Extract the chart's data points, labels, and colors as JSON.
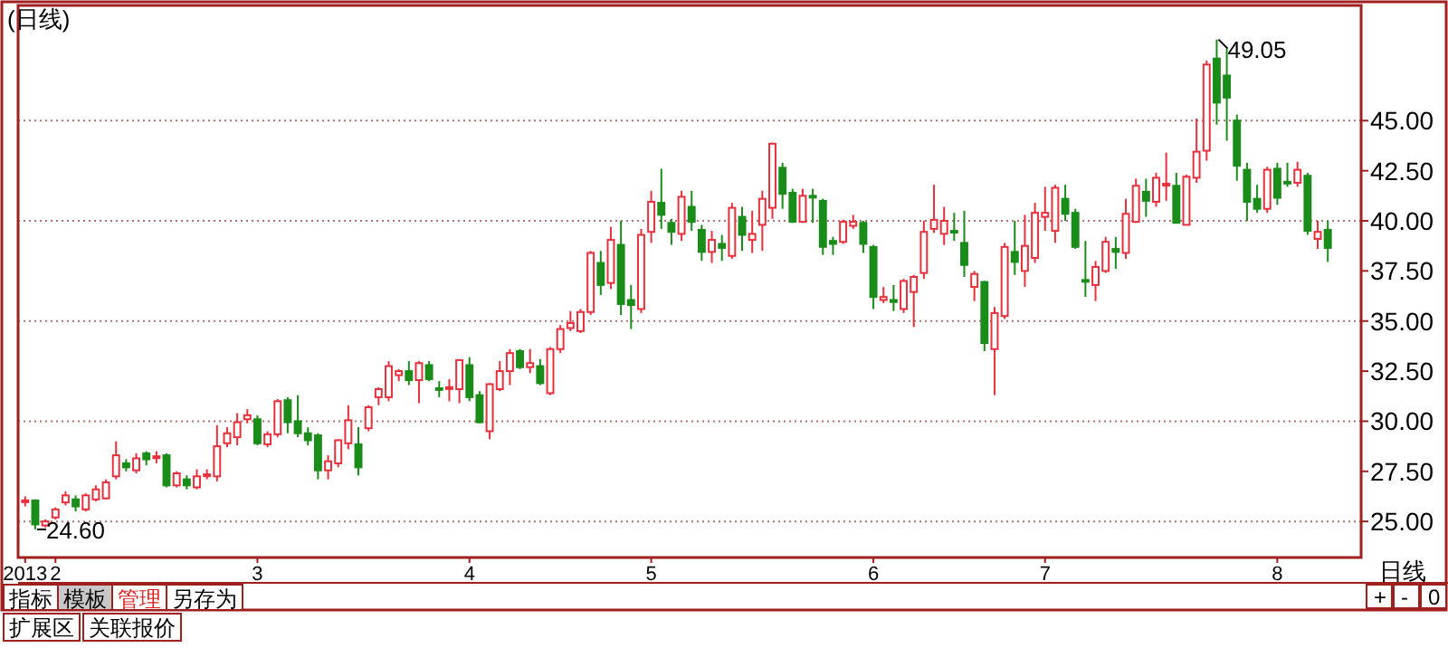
{
  "chart_data": {
    "type": "candlestick",
    "title": "(日线)",
    "categories": [
      "2013",
      null,
      null,
      "2",
      null,
      null,
      null,
      null,
      null,
      null,
      null,
      null,
      null,
      null,
      null,
      null,
      null,
      null,
      null,
      null,
      null,
      null,
      null,
      "3",
      null,
      null,
      null,
      null,
      null,
      null,
      null,
      null,
      null,
      null,
      null,
      null,
      null,
      null,
      null,
      null,
      null,
      null,
      null,
      null,
      "4",
      null,
      null,
      null,
      null,
      null,
      null,
      null,
      null,
      null,
      null,
      null,
      null,
      null,
      null,
      null,
      null,
      null,
      "5",
      null,
      null,
      null,
      null,
      null,
      null,
      null,
      null,
      null,
      null,
      null,
      null,
      null,
      null,
      null,
      null,
      null,
      null,
      null,
      null,
      null,
      "6",
      null,
      null,
      null,
      null,
      null,
      null,
      null,
      null,
      null,
      null,
      null,
      null,
      null,
      null,
      null,
      null,
      "7",
      null,
      null,
      null,
      null,
      null,
      null,
      null,
      null,
      null,
      null,
      null,
      null,
      null,
      null,
      null,
      null,
      null,
      null,
      null,
      null,
      null,
      null,
      "8",
      null,
      null,
      null,
      null,
      null
    ],
    "ohlc": [
      [
        26.0,
        26.25,
        25.75,
        26.05
      ],
      [
        26.05,
        26.1,
        24.6,
        24.85
      ],
      [
        24.8,
        25.1,
        24.7,
        25.0
      ],
      [
        25.2,
        25.7,
        25.1,
        25.6
      ],
      [
        25.95,
        26.5,
        25.8,
        26.3
      ],
      [
        26.1,
        26.3,
        25.5,
        25.75
      ],
      [
        25.6,
        26.4,
        25.5,
        26.3
      ],
      [
        26.1,
        26.8,
        26.0,
        26.6
      ],
      [
        26.15,
        27.1,
        26.1,
        26.95
      ],
      [
        27.25,
        29.0,
        27.1,
        28.3
      ],
      [
        27.9,
        28.1,
        27.5,
        27.7
      ],
      [
        27.55,
        28.4,
        27.4,
        28.15
      ],
      [
        28.4,
        28.5,
        27.8,
        28.1
      ],
      [
        28.2,
        28.5,
        27.9,
        28.25
      ],
      [
        28.3,
        28.4,
        26.7,
        26.8
      ],
      [
        26.8,
        27.5,
        26.7,
        27.4
      ],
      [
        27.1,
        27.3,
        26.6,
        26.8
      ],
      [
        26.7,
        27.6,
        26.6,
        27.25
      ],
      [
        27.3,
        27.6,
        27.1,
        27.35
      ],
      [
        27.25,
        29.8,
        27.0,
        28.75
      ],
      [
        28.9,
        29.7,
        28.7,
        29.4
      ],
      [
        29.2,
        30.4,
        28.8,
        29.95
      ],
      [
        30.1,
        30.6,
        29.9,
        30.3
      ],
      [
        30.1,
        30.3,
        28.8,
        28.9
      ],
      [
        28.85,
        29.5,
        28.7,
        29.35
      ],
      [
        29.35,
        31.1,
        29.2,
        31.0
      ],
      [
        31.05,
        31.2,
        29.4,
        29.95
      ],
      [
        30.0,
        31.3,
        29.2,
        29.4
      ],
      [
        29.4,
        29.7,
        28.8,
        29.05
      ],
      [
        29.3,
        29.4,
        27.1,
        27.55
      ],
      [
        27.55,
        28.3,
        27.1,
        28.0
      ],
      [
        27.9,
        29.1,
        27.7,
        29.05
      ],
      [
        28.9,
        30.8,
        28.6,
        30.05
      ],
      [
        28.85,
        29.7,
        27.3,
        27.7
      ],
      [
        29.65,
        30.8,
        29.5,
        30.7
      ],
      [
        31.2,
        31.7,
        30.8,
        31.6
      ],
      [
        31.2,
        33.0,
        31.0,
        32.75
      ],
      [
        32.3,
        32.6,
        32.0,
        32.5
      ],
      [
        32.5,
        33.0,
        31.8,
        32.05
      ],
      [
        32.05,
        33.0,
        30.9,
        32.9
      ],
      [
        32.8,
        33.0,
        32.0,
        32.1
      ],
      [
        31.65,
        32.0,
        31.2,
        31.6
      ],
      [
        31.65,
        32.1,
        31.0,
        31.7
      ],
      [
        31.6,
        33.1,
        30.9,
        33.05
      ],
      [
        32.8,
        33.2,
        31.0,
        31.2
      ],
      [
        31.3,
        31.5,
        29.9,
        29.95
      ],
      [
        29.5,
        31.9,
        29.1,
        31.85
      ],
      [
        31.6,
        33.0,
        31.5,
        32.5
      ],
      [
        32.5,
        33.6,
        31.8,
        33.4
      ],
      [
        33.5,
        33.6,
        32.6,
        32.7
      ],
      [
        32.7,
        33.6,
        32.4,
        32.9
      ],
      [
        32.75,
        33.1,
        31.8,
        31.9
      ],
      [
        31.4,
        33.7,
        31.3,
        33.6
      ],
      [
        33.6,
        34.8,
        33.4,
        34.6
      ],
      [
        34.65,
        35.5,
        34.5,
        34.9
      ],
      [
        34.5,
        35.6,
        34.4,
        35.45
      ],
      [
        35.45,
        38.5,
        35.3,
        38.4
      ],
      [
        37.9,
        38.5,
        36.3,
        36.8
      ],
      [
        36.9,
        39.7,
        36.6,
        39.05
      ],
      [
        38.8,
        40.0,
        35.3,
        35.85
      ],
      [
        36.05,
        36.8,
        34.6,
        35.8
      ],
      [
        35.6,
        39.6,
        35.4,
        39.3
      ],
      [
        39.45,
        41.5,
        38.9,
        40.95
      ],
      [
        40.9,
        42.6,
        39.6,
        40.3
      ],
      [
        39.9,
        40.1,
        38.8,
        39.45
      ],
      [
        39.35,
        41.5,
        39.0,
        41.2
      ],
      [
        40.7,
        41.5,
        39.5,
        39.95
      ],
      [
        39.55,
        39.8,
        38.0,
        38.45
      ],
      [
        38.45,
        39.5,
        37.9,
        39.05
      ],
      [
        38.85,
        39.3,
        38.0,
        38.65
      ],
      [
        38.25,
        40.9,
        38.1,
        40.65
      ],
      [
        40.2,
        40.7,
        38.5,
        39.3
      ],
      [
        39.05,
        40.5,
        38.4,
        39.35
      ],
      [
        39.8,
        41.5,
        38.5,
        41.1
      ],
      [
        40.65,
        43.9,
        40.1,
        43.85
      ],
      [
        42.65,
        42.9,
        40.6,
        41.35
      ],
      [
        41.4,
        41.6,
        39.9,
        39.95
      ],
      [
        39.95,
        41.6,
        39.9,
        41.25
      ],
      [
        41.25,
        41.6,
        39.9,
        41.2
      ],
      [
        41.0,
        41.1,
        38.3,
        38.7
      ],
      [
        39.0,
        39.2,
        38.3,
        38.85
      ],
      [
        38.95,
        40.05,
        38.85,
        39.95
      ],
      [
        39.75,
        40.3,
        39.6,
        39.95
      ],
      [
        39.9,
        40.0,
        38.4,
        38.85
      ],
      [
        38.7,
        38.8,
        35.6,
        36.2
      ],
      [
        36.05,
        36.7,
        35.9,
        36.2
      ],
      [
        36.05,
        36.8,
        35.5,
        35.95
      ],
      [
        35.6,
        37.1,
        35.4,
        37.0
      ],
      [
        36.45,
        37.3,
        34.7,
        37.2
      ],
      [
        37.4,
        40.0,
        37.1,
        39.45
      ],
      [
        39.6,
        41.8,
        39.4,
        40.05
      ],
      [
        39.35,
        40.7,
        38.8,
        40.0
      ],
      [
        39.5,
        40.4,
        39.0,
        39.45
      ],
      [
        38.9,
        40.5,
        37.2,
        37.8
      ],
      [
        36.7,
        37.5,
        36.0,
        37.35
      ],
      [
        36.95,
        37.0,
        33.5,
        33.9
      ],
      [
        33.6,
        35.7,
        31.3,
        35.4
      ],
      [
        35.25,
        38.9,
        35.1,
        38.7
      ],
      [
        38.45,
        40.0,
        37.3,
        37.95
      ],
      [
        37.5,
        40.3,
        36.7,
        38.75
      ],
      [
        38.15,
        40.9,
        37.9,
        40.4
      ],
      [
        40.2,
        41.7,
        39.5,
        40.4
      ],
      [
        39.5,
        41.8,
        38.9,
        41.65
      ],
      [
        41.1,
        41.8,
        40.0,
        40.35
      ],
      [
        40.4,
        40.6,
        38.6,
        38.7
      ],
      [
        37.05,
        39.0,
        36.2,
        37.0
      ],
      [
        36.8,
        38.0,
        36.0,
        37.7
      ],
      [
        37.5,
        39.2,
        37.4,
        38.95
      ],
      [
        38.6,
        39.2,
        37.6,
        38.45
      ],
      [
        38.4,
        41.1,
        38.1,
        40.35
      ],
      [
        39.95,
        42.1,
        39.9,
        41.75
      ],
      [
        41.45,
        42.1,
        40.2,
        41.0
      ],
      [
        40.95,
        42.4,
        40.7,
        42.15
      ],
      [
        41.8,
        43.4,
        41.0,
        41.85
      ],
      [
        41.75,
        42.4,
        39.9,
        39.9
      ],
      [
        39.8,
        42.3,
        39.8,
        42.2
      ],
      [
        42.15,
        45.1,
        41.9,
        43.45
      ],
      [
        43.5,
        48.0,
        43.0,
        47.8
      ],
      [
        48.1,
        49.05,
        44.8,
        45.9
      ],
      [
        47.25,
        48.6,
        44.0,
        46.15
      ],
      [
        45.0,
        45.3,
        42.0,
        42.75
      ],
      [
        42.55,
        42.9,
        40.0,
        40.95
      ],
      [
        41.1,
        41.8,
        40.4,
        40.6
      ],
      [
        40.6,
        42.7,
        40.4,
        42.55
      ],
      [
        42.6,
        42.9,
        40.8,
        41.15
      ],
      [
        41.95,
        42.9,
        41.7,
        41.9
      ],
      [
        41.9,
        42.95,
        41.7,
        42.55
      ],
      [
        42.25,
        42.4,
        39.3,
        39.5
      ],
      [
        39.1,
        40.0,
        38.6,
        39.45
      ],
      [
        39.55,
        40.0,
        37.95,
        38.65
      ]
    ],
    "ylim": [
      23.2,
      50.75
    ],
    "yticks": [
      {
        "value": 25,
        "label": "25.00"
      },
      {
        "value": 27.5,
        "label": "27.50"
      },
      {
        "value": 30,
        "label": "30.00"
      },
      {
        "value": 32.5,
        "label": "32.50"
      },
      {
        "value": 35,
        "label": "35.00"
      },
      {
        "value": 37.5,
        "label": "37.50"
      },
      {
        "value": 40,
        "label": "40.00"
      },
      {
        "value": 42.5,
        "label": "42.50"
      },
      {
        "value": 45,
        "label": "45.00"
      }
    ],
    "ref_lines": [
      {
        "axis": "y",
        "value": 25,
        "color": "#b07070",
        "line_style": "dotted"
      },
      {
        "axis": "y",
        "value": 30,
        "color": "#b07070",
        "line_style": "dotted"
      },
      {
        "axis": "y",
        "value": 35,
        "color": "#b07070",
        "line_style": "dotted"
      },
      {
        "axis": "y",
        "value": 40,
        "color": "#b07070",
        "line_style": "dotted"
      },
      {
        "axis": "y",
        "value": 45,
        "color": "#b07070",
        "line_style": "dotted"
      }
    ],
    "annotations": [
      "24.60",
      "49.05",
      "指标",
      "模板",
      "管理",
      "另存为",
      "扩展区",
      "关联报价",
      "日线",
      "+",
      "-",
      "0"
    ]
  }
}
